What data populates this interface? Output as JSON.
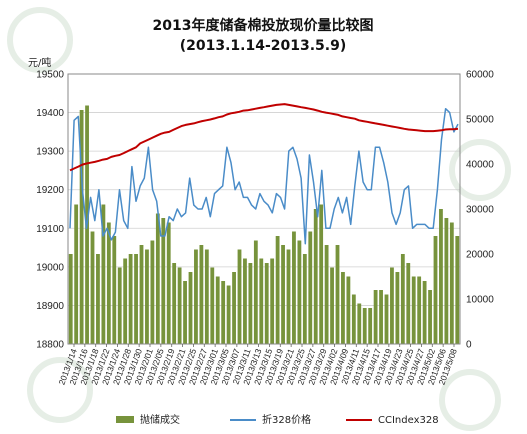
{
  "chart_data": {
    "type": "bar+line",
    "title": "2013年度储备棉投放现价量比较图",
    "subtitle": "(2013.1.14-2013.5.9)",
    "y_left_unit": "元/吨",
    "y_left_lim": [
      18800,
      19500
    ],
    "y_left_ticks": [
      18800,
      18900,
      19000,
      19100,
      19200,
      19300,
      19400,
      19500
    ],
    "y_right_lim": [
      0,
      60000
    ],
    "y_right_ticks": [
      0,
      10000,
      20000,
      30000,
      40000,
      50000,
      60000
    ],
    "x_tick_labels": [
      "2013/1/14",
      "2013/1/16",
      "2013/1/18",
      "2013/1/22",
      "2013/1/24",
      "2013/1/28",
      "2013/1/30",
      "2013/2/01",
      "2013/2/05",
      "2013/2/19",
      "2013/2/21",
      "2013/2/25",
      "2013/2/27",
      "2013/3/01",
      "2013/3/05",
      "2013/3/07",
      "2013/3/11",
      "2013/3/13",
      "2013/3/15",
      "2013/3/19",
      "2013/3/21",
      "2013/3/25",
      "2013/3/27",
      "2013/3/29",
      "2013/4/02",
      "2013/4/09",
      "2013/4/11",
      "2013/4/15",
      "2013/4/17",
      "2013/4/19",
      "2013/4/23",
      "2013/4/25",
      "2013/4/27",
      "2013/5/02",
      "2013/5/06",
      "2013/5/08"
    ],
    "legend_position": "bottom",
    "series": [
      {
        "name": "抛储成交",
        "type": "bar",
        "axis": "right",
        "color": "#77933c",
        "values": [
          20000,
          31000,
          52000,
          53000,
          25000,
          20000,
          31000,
          27000,
          24000,
          17000,
          19000,
          20000,
          20000,
          22000,
          21000,
          23000,
          29000,
          28000,
          27000,
          18000,
          17000,
          14000,
          16000,
          21000,
          22000,
          21000,
          17000,
          15000,
          14000,
          13000,
          16000,
          21000,
          19000,
          18000,
          23000,
          19000,
          18000,
          19000,
          24000,
          22000,
          21000,
          25000,
          23000,
          20000,
          25000,
          30000,
          31000,
          22000,
          17000,
          22000,
          16000,
          15000,
          11000,
          9000,
          8000,
          8000,
          12000,
          12000,
          11000,
          17000,
          16000,
          20000,
          18000,
          15000,
          15000,
          14000,
          12000,
          24000,
          30000,
          28000,
          27000,
          24000
        ]
      },
      {
        "name": "折328价格",
        "type": "line",
        "axis": "left",
        "color": "#4a8cc8",
        "values": [
          19100,
          19380,
          19390,
          19200,
          19100,
          19180,
          19120,
          19200,
          19080,
          19100,
          19070,
          19090,
          19200,
          19120,
          19100,
          19260,
          19170,
          19210,
          19230,
          19310,
          19200,
          19170,
          19080,
          19080,
          19130,
          19120,
          19150,
          19130,
          19140,
          19230,
          19160,
          19150,
          19150,
          19180,
          19130,
          19190,
          19200,
          19210,
          19310,
          19270,
          19200,
          19220,
          19180,
          19180,
          19160,
          19150,
          19190,
          19170,
          19160,
          19140,
          19190,
          19180,
          19150,
          19300,
          19310,
          19280,
          19230,
          19060,
          19290,
          19220,
          19130,
          19250,
          19100,
          19100,
          19150,
          19180,
          19140,
          19180,
          19110,
          19210,
          19300,
          19220,
          19200,
          19200,
          19310,
          19310,
          19270,
          19220,
          19140,
          19110,
          19140,
          19200,
          19210,
          19100,
          19110,
          19110,
          19110,
          19100,
          19100,
          19200,
          19330,
          19410,
          19400,
          19350,
          19370
        ]
      },
      {
        "name": "CCIndex328",
        "type": "line",
        "axis": "left",
        "color": "#c00000",
        "values": [
          19250,
          19255,
          19260,
          19265,
          19268,
          19270,
          19272,
          19275,
          19278,
          19280,
          19285,
          19288,
          19290,
          19295,
          19300,
          19305,
          19310,
          19320,
          19325,
          19330,
          19335,
          19340,
          19345,
          19348,
          19350,
          19355,
          19360,
          19365,
          19368,
          19370,
          19372,
          19375,
          19378,
          19380,
          19382,
          19385,
          19388,
          19390,
          19395,
          19398,
          19400,
          19402,
          19405,
          19406,
          19408,
          19410,
          19412,
          19414,
          19416,
          19418,
          19420,
          19421,
          19422,
          19420,
          19418,
          19416,
          19414,
          19412,
          19410,
          19408,
          19405,
          19402,
          19400,
          19398,
          19396,
          19394,
          19390,
          19388,
          19386,
          19384,
          19380,
          19378,
          19376,
          19374,
          19372,
          19370,
          19368,
          19366,
          19364,
          19362,
          19360,
          19358,
          19356,
          19355,
          19354,
          19353,
          19352,
          19352,
          19352,
          19353,
          19354,
          19356,
          19357,
          19357,
          19358
        ]
      }
    ]
  }
}
